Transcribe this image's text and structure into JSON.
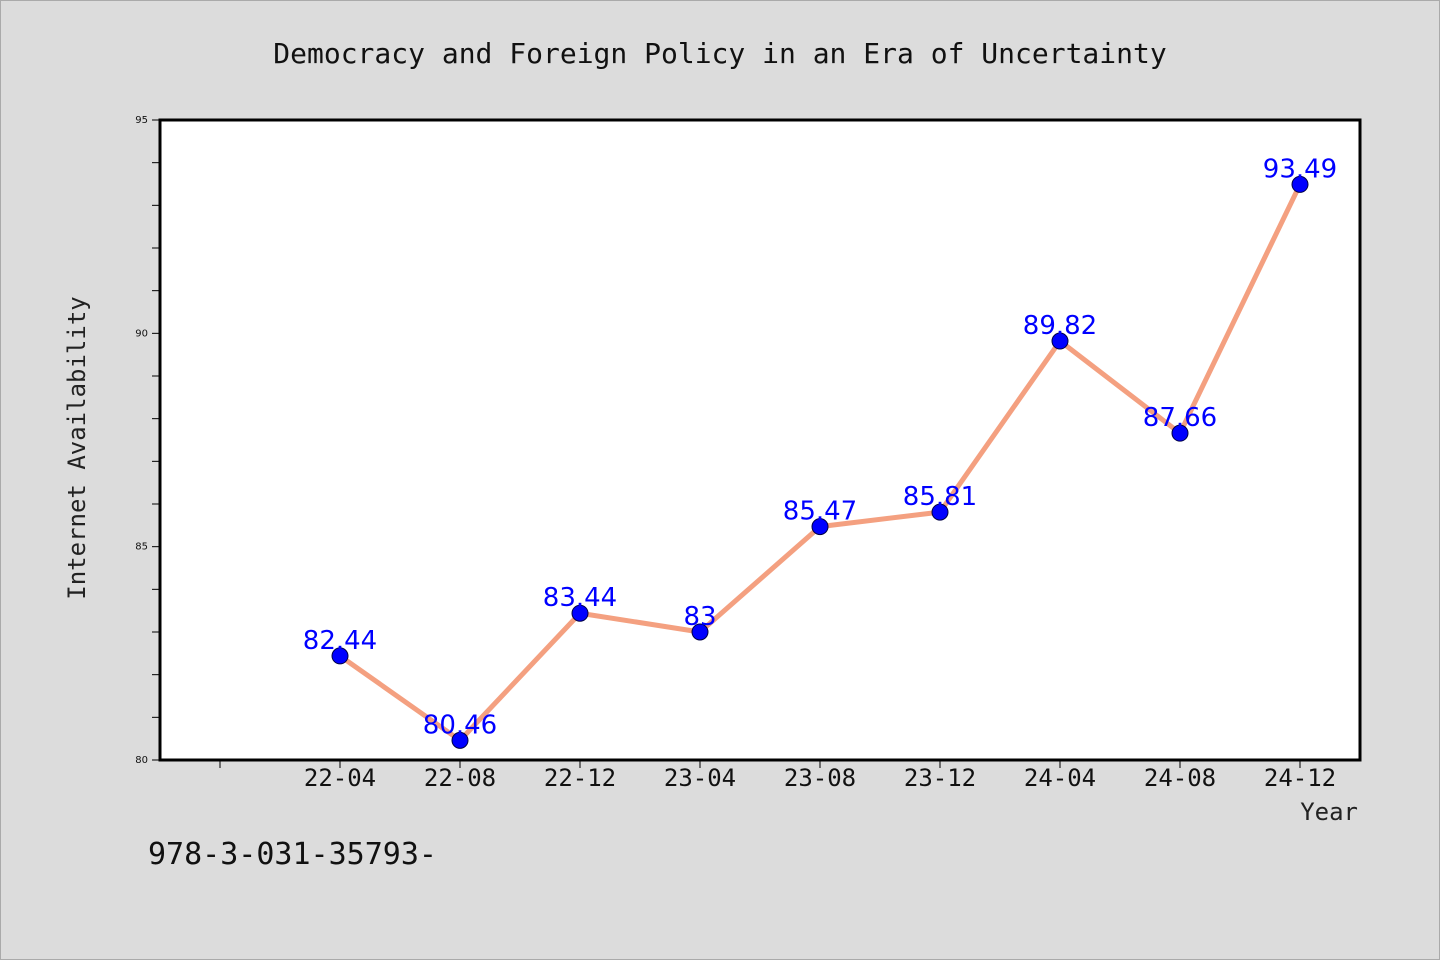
{
  "chart_data": {
    "type": "line",
    "title": "Democracy and Foreign Policy in an Era of Uncertainty",
    "xlabel": "Year",
    "ylabel": "Internet Availability",
    "categories": [
      "22-04",
      "22-08",
      "22-12",
      "23-04",
      "23-08",
      "23-12",
      "24-04",
      "24-08",
      "24-12"
    ],
    "series": [
      {
        "values": [
          82.44,
          80.46,
          83.44,
          83,
          85.47,
          85.81,
          89.82,
          87.66,
          93.49
        ],
        "data_labels": [
          "82.44",
          "80.46",
          "83.44",
          "83",
          "85.47",
          "85.81",
          "89.82",
          "87.66",
          "93.49"
        ],
        "line_color": "#f4a080",
        "marker_color": "#0000ff"
      }
    ],
    "ylim": [
      80,
      95
    ],
    "yticks": [
      "80",
      "85",
      "90",
      "95"
    ],
    "grid": false,
    "legend": "none"
  },
  "footer": {
    "text": "978-3-031-35793-"
  }
}
